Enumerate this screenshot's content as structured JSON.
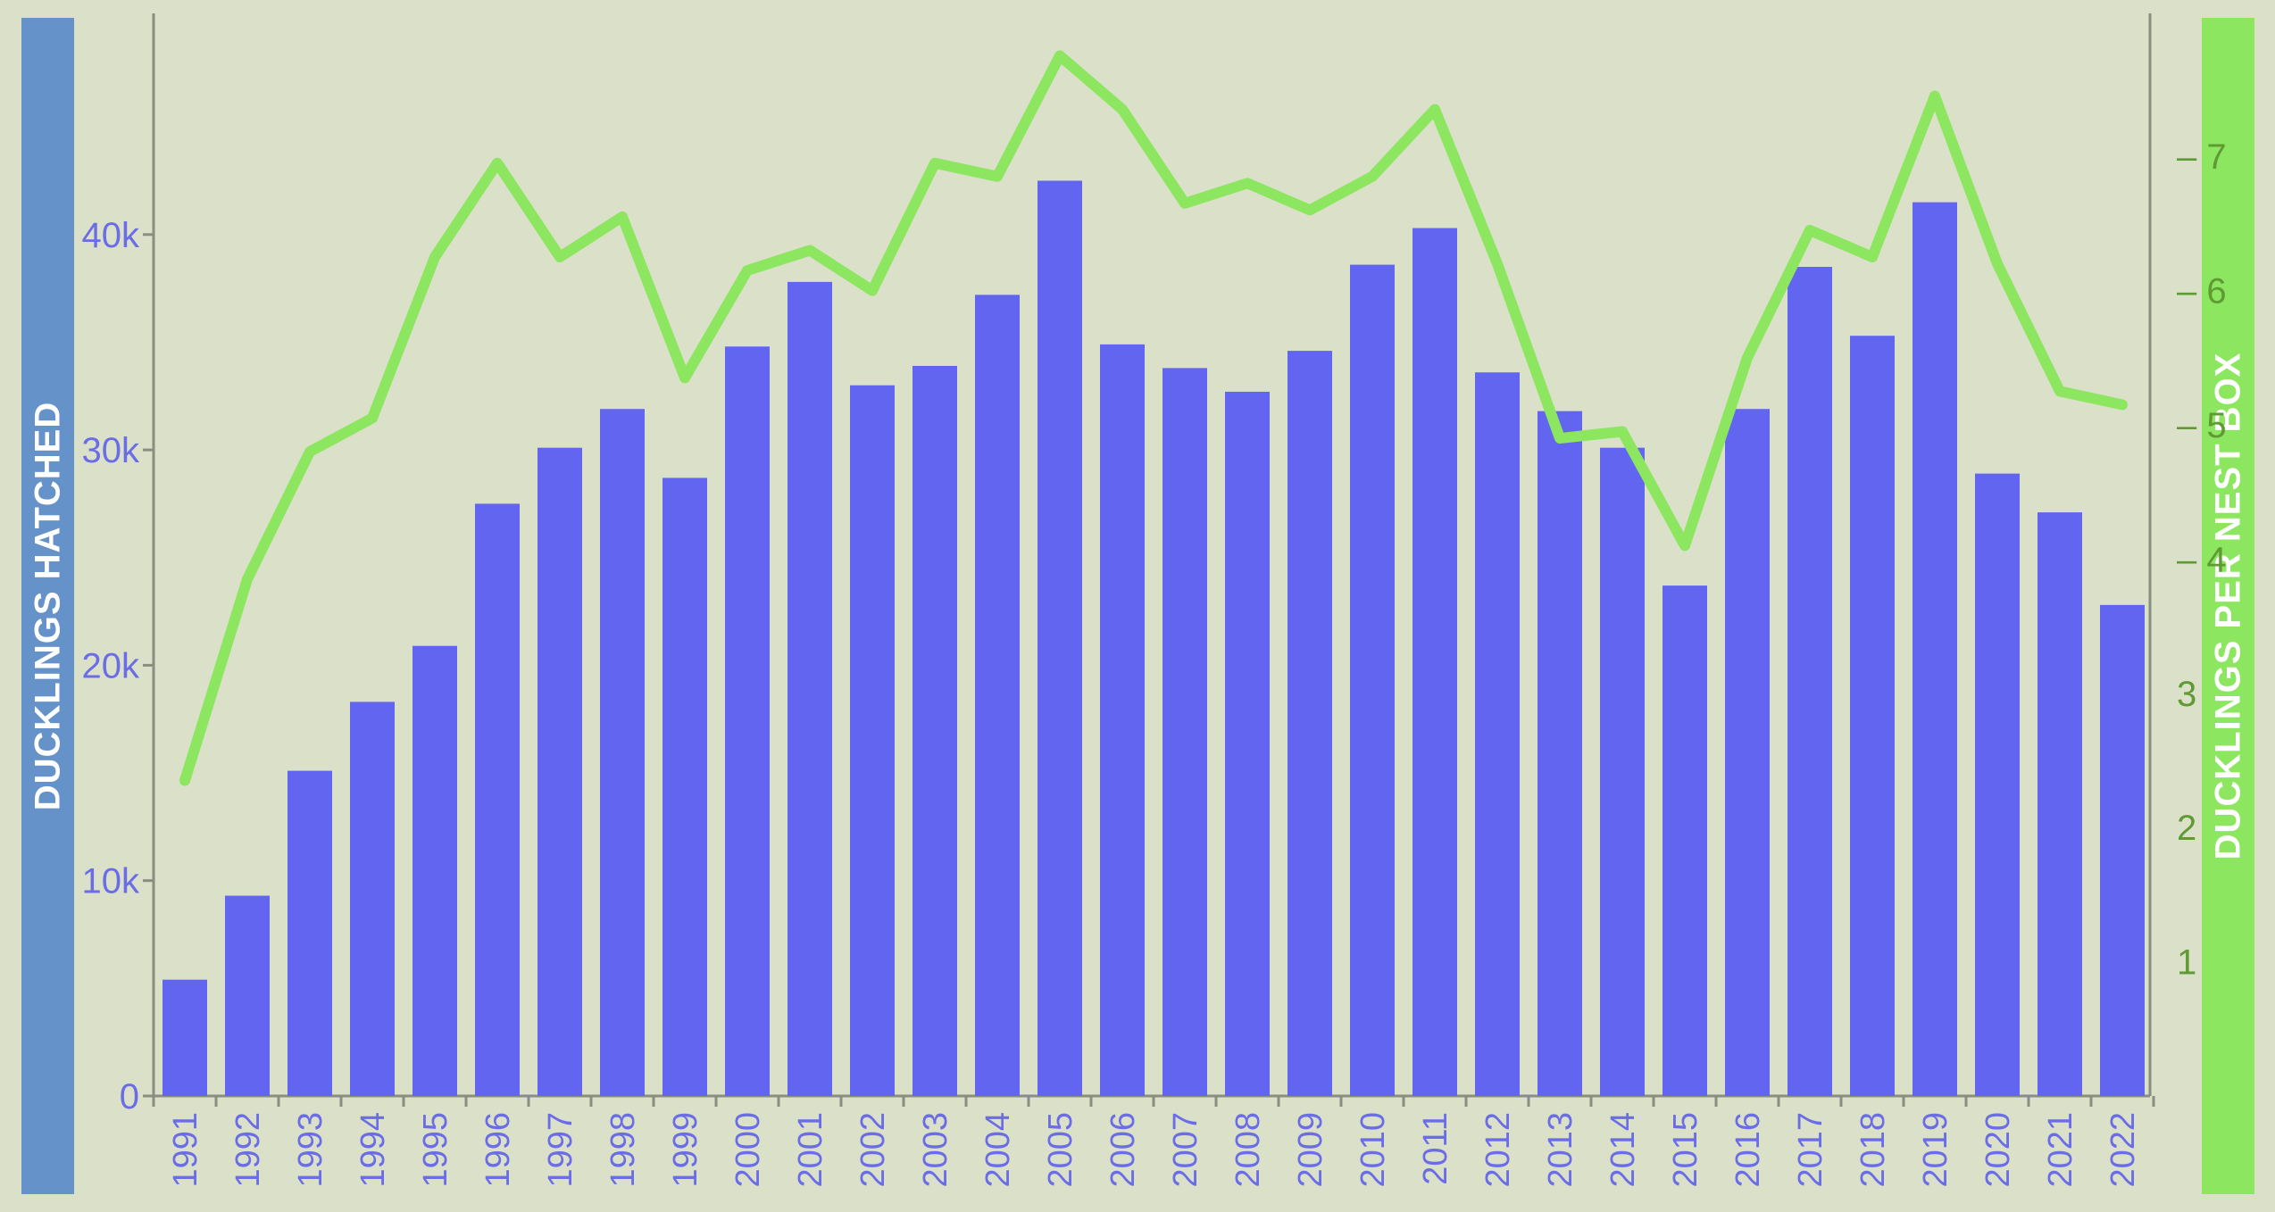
{
  "chart_data": {
    "type": "bar",
    "categories": [
      "1991",
      "1992",
      "1993",
      "1994",
      "1995",
      "1996",
      "1997",
      "1998",
      "1999",
      "2000",
      "2001",
      "2002",
      "2003",
      "2004",
      "2005",
      "2006",
      "2007",
      "2008",
      "2009",
      "2010",
      "2011",
      "2012",
      "2013",
      "2014",
      "2015",
      "2016",
      "2017",
      "2018",
      "2019",
      "2020",
      "2021",
      "2022"
    ],
    "series": [
      {
        "type": "bar",
        "axis": "left",
        "color": "#6165ef",
        "values": [
          5400,
          9300,
          15100,
          18300,
          20900,
          27500,
          30100,
          31900,
          28700,
          34800,
          37800,
          33000,
          33900,
          37200,
          42500,
          34900,
          33800,
          32700,
          34600,
          38600,
          40300,
          33600,
          31800,
          30100,
          23700,
          31900,
          38500,
          35300,
          41500,
          28900,
          27100,
          22800
        ]
      },
      {
        "type": "line",
        "axis": "right",
        "color": "#8de65f",
        "values": [
          2.35,
          3.85,
          4.8,
          5.05,
          6.25,
          6.95,
          6.25,
          6.55,
          5.35,
          6.15,
          6.3,
          6.0,
          6.95,
          6.85,
          7.75,
          7.35,
          6.65,
          6.8,
          6.6,
          6.85,
          7.35,
          6.2,
          4.9,
          4.95,
          4.1,
          5.5,
          6.45,
          6.25,
          7.45,
          6.2,
          5.25,
          5.15
        ]
      }
    ],
    "ylabel_left": "DUCKLINGS HATCHED",
    "ylabel_right": "DUCKLINGS PER NEST BOX",
    "ylim_left": [
      0,
      50000
    ],
    "ylim_right": [
      0,
      8
    ],
    "yticks_left": [
      {
        "value": 0,
        "label": "0"
      },
      {
        "value": 10000,
        "label": "10k"
      },
      {
        "value": 20000,
        "label": "20k"
      },
      {
        "value": 30000,
        "label": "30k"
      },
      {
        "value": 40000,
        "label": "40k"
      }
    ],
    "yticks_right": [
      {
        "value": 1,
        "label": "1"
      },
      {
        "value": 2,
        "label": "2"
      },
      {
        "value": 3,
        "label": "3"
      },
      {
        "value": 4,
        "label": "– 4"
      },
      {
        "value": 5,
        "label": "– 5"
      },
      {
        "value": 6,
        "label": "– 6"
      },
      {
        "value": 7,
        "label": "– 7"
      }
    ],
    "grid": false,
    "legend": "none"
  }
}
